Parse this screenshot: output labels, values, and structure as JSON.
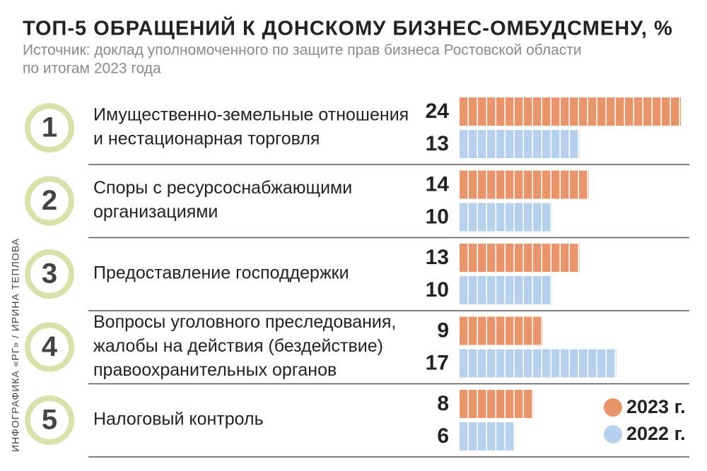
{
  "chart_data": {
    "type": "bar",
    "orientation": "horizontal",
    "title": "ТОП-5 ОБРАЩЕНИЙ К ДОНСКОМУ БИЗНЕС-ОМБУДСМЕНУ, %",
    "subtitle": [
      "Источник: доклад уполномоченного по защите прав бизнеса Ростовской области",
      "по итогам 2023 года"
    ],
    "ranks": [
      "1",
      "2",
      "3",
      "4",
      "5"
    ],
    "categories": [
      [
        "Имущественно-земельные отношения",
        "и нестационарная торговля"
      ],
      [
        "Споры с ресурсоснабжающими",
        "организациями"
      ],
      [
        "Предоставление господдержки"
      ],
      [
        "Вопросы уголовного преследования,",
        "жалобы на действия (бездействие)",
        "правоохранительных органов"
      ],
      [
        "Налоговый контроль"
      ]
    ],
    "series": [
      {
        "name": "2023 г.",
        "color": "#e8956b",
        "values": [
          24,
          14,
          13,
          9,
          8
        ]
      },
      {
        "name": "2022 г.",
        "color": "#b7d0ec",
        "values": [
          13,
          10,
          10,
          17,
          6
        ]
      }
    ],
    "credit": "ИНФОГРАФИКА «РГ» / ИРИНА ТЕПЛОВА"
  }
}
